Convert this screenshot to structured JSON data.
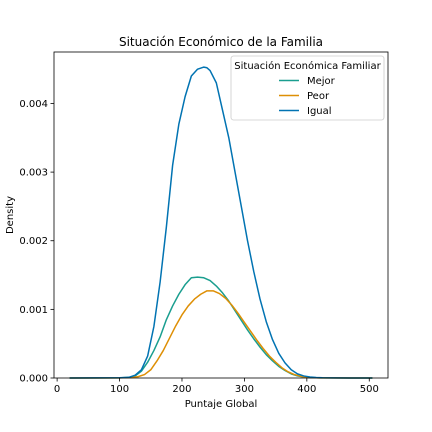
{
  "chart_data": {
    "type": "line",
    "title": "Situación Económico de la Familia",
    "xlabel": "Puntaje Global",
    "ylabel": "Density",
    "xlim": [
      -5,
      530
    ],
    "ylim": [
      0,
      0.00475
    ],
    "xticks": [
      0,
      100,
      200,
      300,
      400,
      500
    ],
    "yticks": [
      0.0,
      0.001,
      0.002,
      0.003,
      0.004
    ],
    "ytick_labels": [
      "0.000",
      "0.001",
      "0.002",
      "0.003",
      "0.004"
    ],
    "grid": false,
    "legend": {
      "title": "Situación Económica Familiar",
      "placement": "top-right"
    },
    "series": [
      {
        "name": "Mejor",
        "color": "#1a9e8f",
        "x": [
          20,
          100,
          115,
          125,
          135,
          145,
          155,
          165,
          175,
          185,
          195,
          205,
          215,
          225,
          235,
          245,
          255,
          265,
          275,
          285,
          295,
          305,
          315,
          325,
          335,
          345,
          355,
          365,
          375,
          385,
          395,
          405,
          415,
          425,
          440,
          470,
          505
        ],
        "y": [
          0,
          2e-06,
          1e-05,
          3e-05,
          0.0001,
          0.00023,
          0.0004,
          0.0006,
          0.00085,
          0.00105,
          0.00122,
          0.00136,
          0.00146,
          0.00147,
          0.00146,
          0.00142,
          0.00134,
          0.00124,
          0.00112,
          0.00098,
          0.00084,
          0.0007,
          0.00057,
          0.00045,
          0.00034,
          0.00025,
          0.00017,
          0.00011,
          6e-05,
          3e-05,
          1.5e-05,
          8e-06,
          4e-06,
          2e-06,
          1e-06,
          0,
          0
        ]
      },
      {
        "name": "Peor",
        "color": "#de8f05",
        "x": [
          20,
          100,
          120,
          130,
          140,
          150,
          160,
          170,
          180,
          190,
          200,
          210,
          220,
          230,
          240,
          250,
          260,
          270,
          280,
          290,
          300,
          310,
          320,
          330,
          340,
          350,
          360,
          370,
          380,
          390,
          400,
          410,
          420,
          440,
          470,
          505
        ],
        "y": [
          0,
          1e-06,
          8e-06,
          2e-05,
          5e-05,
          0.00012,
          0.00025,
          0.0004,
          0.00058,
          0.00076,
          0.00092,
          0.00105,
          0.00115,
          0.00122,
          0.00127,
          0.00127,
          0.00123,
          0.00116,
          0.00106,
          0.00094,
          0.00081,
          0.00068,
          0.00055,
          0.00043,
          0.00032,
          0.00023,
          0.00015,
          9e-05,
          5e-05,
          2.5e-05,
          1e-05,
          5e-06,
          2e-06,
          1e-06,
          0,
          0
        ]
      },
      {
        "name": "Igual",
        "color": "#0173b2",
        "x": [
          20,
          100,
          115,
          125,
          135,
          145,
          155,
          165,
          175,
          185,
          195,
          205,
          215,
          225,
          235,
          240,
          245,
          255,
          265,
          275,
          285,
          295,
          305,
          315,
          325,
          335,
          345,
          355,
          365,
          375,
          385,
          395,
          405,
          415,
          425,
          440,
          470,
          505
        ],
        "y": [
          0,
          3e-06,
          1e-05,
          4e-05,
          0.00012,
          0.00032,
          0.00075,
          0.0014,
          0.0022,
          0.0031,
          0.0037,
          0.0041,
          0.0044,
          0.0045,
          0.00453,
          0.00452,
          0.00448,
          0.0043,
          0.0039,
          0.0035,
          0.003,
          0.0025,
          0.002,
          0.00155,
          0.00115,
          0.00082,
          0.00056,
          0.00036,
          0.00022,
          0.00012,
          6e-05,
          3e-05,
          1.5e-05,
          8e-06,
          4e-06,
          2e-06,
          0,
          0
        ]
      }
    ]
  }
}
